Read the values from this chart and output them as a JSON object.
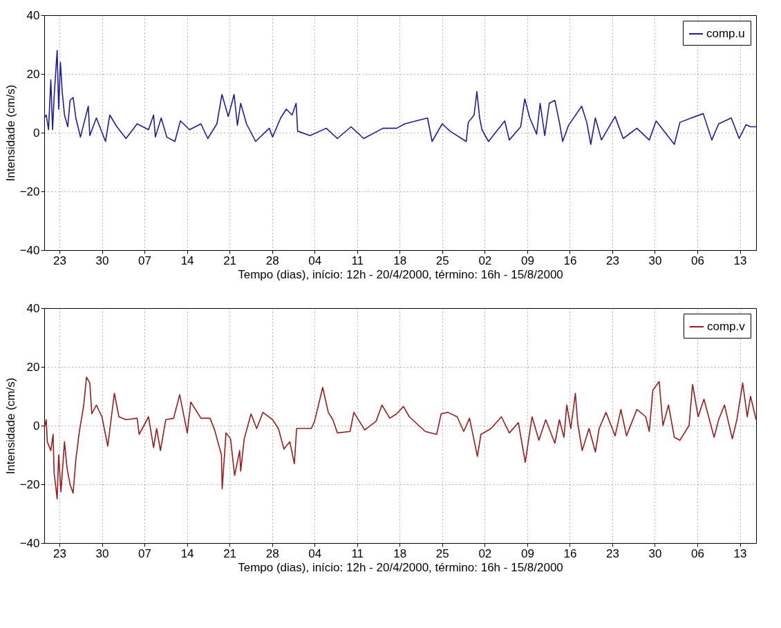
{
  "chart_data": [
    {
      "type": "line",
      "xlabel": "Tempo (dias), início: 12h - 20/4/2000, término: 16h - 15/8/2000",
      "ylabel": "Intensidade (cm/s)",
      "grid": true,
      "legend": "top right",
      "line_style": "solid",
      "xlim": [
        "2000-04-20T12:00",
        "2000-08-15T16:00"
      ],
      "ylim": [
        -40,
        40
      ],
      "yticks": [
        -40,
        -20,
        0,
        20,
        40
      ],
      "xticks": [
        {
          "value": "2000-04-23",
          "label": "23"
        },
        {
          "value": "2000-04-30",
          "label": "30"
        },
        {
          "value": "2000-05-07",
          "label": "07"
        },
        {
          "value": "2000-05-14",
          "label": "14"
        },
        {
          "value": "2000-05-21",
          "label": "21"
        },
        {
          "value": "2000-05-28",
          "label": "28"
        },
        {
          "value": "2000-06-04",
          "label": "04"
        },
        {
          "value": "2000-06-11",
          "label": "11"
        },
        {
          "value": "2000-06-18",
          "label": "18"
        },
        {
          "value": "2000-06-25",
          "label": "25"
        },
        {
          "value": "2000-07-02",
          "label": "02"
        },
        {
          "value": "2000-07-09",
          "label": "09"
        },
        {
          "value": "2000-07-16",
          "label": "16"
        },
        {
          "value": "2000-07-23",
          "label": "23"
        },
        {
          "value": "2000-07-30",
          "label": "30"
        },
        {
          "value": "2000-08-06",
          "label": "06"
        },
        {
          "value": "2000-08-13",
          "label": "13"
        }
      ],
      "x": [
        "2000-04-20T12:00",
        "2000-04-20T20:00",
        "2000-04-21T05:00",
        "2000-04-21T14:00",
        "2000-04-21T21:00",
        "2000-04-22T03:00",
        "2000-04-22T15:00",
        "2000-04-22T21:00",
        "2000-04-23T04:00",
        "2000-04-23T11:00",
        "2000-04-23T20:00",
        "2000-04-24T09:00",
        "2000-04-24T18:00",
        "2000-04-25T06:00",
        "2000-04-25T17:00",
        "2000-04-26T11:00",
        "2000-04-27T18:00",
        "2000-04-28T00:00",
        "2000-04-29T02:00",
        "2000-04-30T14:00",
        "2000-05-01T07:00",
        "2000-05-02T11:00",
        "2000-05-03T23:00",
        "2000-05-05T19:00",
        "2000-05-07T16:00",
        "2000-05-08T12:00",
        "2000-05-08T19:00",
        "2000-05-09T18:00",
        "2000-05-10T16:00",
        "2000-05-12T00:00",
        "2000-05-12T22:00",
        "2000-05-14T10:00",
        "2000-05-16T07:00",
        "2000-05-17T10:00",
        "2000-05-18T22:00",
        "2000-05-19T18:00",
        "2000-05-20T19:00",
        "2000-05-21T18:00",
        "2000-05-22T07:00",
        "2000-05-22T20:00",
        "2000-05-23T19:00",
        "2000-05-25T07:00",
        "2000-05-27T13:00",
        "2000-05-28T02:00",
        "2000-05-29T10:00",
        "2000-05-30T08:00",
        "2000-05-31T07:00",
        "2000-05-31T23:00",
        "2000-06-01T05:00",
        "2000-06-03T06:00",
        "2000-06-05T22:00",
        "2000-06-07T18:00",
        "2000-06-10T00:00",
        "2000-06-12T02:00",
        "2000-06-15T06:00",
        "2000-06-17T12:00",
        "2000-06-18T20:00",
        "2000-06-22T14:00",
        "2000-06-23T08:00",
        "2000-06-25T00:00",
        "2000-06-26T07:00",
        "2000-06-28T23:00",
        "2000-06-29T07:00",
        "2000-06-30T06:00",
        "2000-06-30T17:00",
        "2000-07-01T04:00",
        "2000-07-01T13:00",
        "2000-07-02T15:00",
        "2000-07-05T07:00",
        "2000-07-06T01:00",
        "2000-07-07T22:00",
        "2000-07-08T14:00",
        "2000-07-09T10:00",
        "2000-07-10T13:00",
        "2000-07-11T03:00",
        "2000-07-11T21:00",
        "2000-07-12T15:00",
        "2000-07-13T13:00",
        "2000-07-14T07:00",
        "2000-07-14T20:00",
        "2000-07-15T19:00",
        "2000-07-17T23:00",
        "2000-07-18T19:00",
        "2000-07-19T11:00",
        "2000-07-20T05:00",
        "2000-07-21T05:00",
        "2000-07-23T11:00",
        "2000-07-24T19:00",
        "2000-07-27T01:00",
        "2000-07-29T02:00",
        "2000-07-30T05:00",
        "2000-08-02T05:00",
        "2000-08-03T03:00",
        "2000-08-05T00:00",
        "2000-08-06T23:00",
        "2000-08-08T09:00",
        "2000-08-09T12:00",
        "2000-08-11T14:00",
        "2000-08-12T21:00",
        "2000-08-14T00:00",
        "2000-08-14T18:00",
        "2000-08-15T16:00"
      ],
      "series": [
        {
          "name": "comp.u",
          "color": "#1c1c9c",
          "values": [
            5,
            6,
            1,
            18,
            1,
            12,
            28,
            8,
            24,
            14,
            6,
            2,
            11,
            12,
            5,
            -1.5,
            9,
            -1,
            5,
            -3,
            6,
            2,
            -2,
            3,
            1,
            6,
            -1.5,
            5,
            -1.5,
            -3,
            4,
            1,
            3,
            -2,
            3,
            13,
            5.5,
            13,
            2.5,
            10,
            3,
            -3,
            1.5,
            -1.5,
            5,
            8,
            6,
            10,
            0.5,
            -1,
            1.5,
            -2,
            2,
            -2,
            1.5,
            1.5,
            3,
            5,
            -3,
            3,
            0.5,
            -3,
            3.5,
            6,
            14,
            5,
            1,
            -3,
            4,
            -2.5,
            2,
            11.5,
            5,
            -0.5,
            10,
            -1,
            10,
            11,
            3.5,
            -3,
            2.5,
            9,
            3.5,
            -4,
            5,
            -2.5,
            5.5,
            -2,
            1.5,
            -2.5,
            4,
            -4,
            3.5,
            5,
            6.5,
            -2.5,
            3,
            5,
            -2,
            2.7,
            2,
            2
          ]
        }
      ]
    },
    {
      "type": "line",
      "xlabel": "Tempo (dias), início: 12h - 20/4/2000, término: 16h - 15/8/2000",
      "ylabel": "Intensidade (cm/s)",
      "grid": true,
      "legend": "top right",
      "line_style": "solid",
      "xlim": [
        "2000-04-20T12:00",
        "2000-08-15T16:00"
      ],
      "ylim": [
        -40,
        40
      ],
      "yticks": [
        -40,
        -20,
        0,
        20,
        40
      ],
      "xticks": [
        {
          "value": "2000-04-23",
          "label": "23"
        },
        {
          "value": "2000-04-30",
          "label": "30"
        },
        {
          "value": "2000-05-07",
          "label": "07"
        },
        {
          "value": "2000-05-14",
          "label": "14"
        },
        {
          "value": "2000-05-21",
          "label": "21"
        },
        {
          "value": "2000-05-28",
          "label": "28"
        },
        {
          "value": "2000-06-04",
          "label": "04"
        },
        {
          "value": "2000-06-11",
          "label": "11"
        },
        {
          "value": "2000-06-18",
          "label": "18"
        },
        {
          "value": "2000-06-25",
          "label": "25"
        },
        {
          "value": "2000-07-02",
          "label": "02"
        },
        {
          "value": "2000-07-09",
          "label": "09"
        },
        {
          "value": "2000-07-16",
          "label": "16"
        },
        {
          "value": "2000-07-23",
          "label": "23"
        },
        {
          "value": "2000-07-30",
          "label": "30"
        },
        {
          "value": "2000-08-06",
          "label": "06"
        },
        {
          "value": "2000-08-13",
          "label": "13"
        }
      ],
      "x": [
        "2000-04-20T12:00",
        "2000-04-20T20:00",
        "2000-04-21T00:00",
        "2000-04-21T14:00",
        "2000-04-21T23:00",
        "2000-04-22T03:00",
        "2000-04-22T15:00",
        "2000-04-22T21:00",
        "2000-04-23T06:00",
        "2000-04-23T20:00",
        "2000-04-24T06:00",
        "2000-04-24T18:00",
        "2000-04-25T06:00",
        "2000-04-25T17:00",
        "2000-04-26T06:00",
        "2000-04-27T00:00",
        "2000-04-27T11:00",
        "2000-04-28T00:00",
        "2000-04-28T08:00",
        "2000-04-29T02:00",
        "2000-04-30T00:00",
        "2000-04-30T23:00",
        "2000-05-02T01:00",
        "2000-05-02T19:00",
        "2000-05-03T23:00",
        "2000-05-05T19:00",
        "2000-05-06T03:00",
        "2000-05-07T16:00",
        "2000-05-08T12:00",
        "2000-05-09T00:00",
        "2000-05-09T15:00",
        "2000-05-10T12:00",
        "2000-05-11T19:00",
        "2000-05-12T19:00",
        "2000-05-14T01:00",
        "2000-05-14T15:00",
        "2000-05-16T07:00",
        "2000-05-17T19:00",
        "2000-05-18T13:00",
        "2000-05-19T16:00",
        "2000-05-19T19:00",
        "2000-05-20T10:00",
        "2000-05-21T04:00",
        "2000-05-21T20:00",
        "2000-05-22T16:00",
        "2000-05-22T20:00",
        "2000-05-23T10:00",
        "2000-05-24T13:00",
        "2000-05-25T11:00",
        "2000-05-26T12:00",
        "2000-05-28T02:00",
        "2000-05-29T01:00",
        "2000-05-29T23:00",
        "2000-05-30T22:00",
        "2000-05-31T16:00",
        "2000-06-01T01:00",
        "2000-06-03T11:00",
        "2000-06-04T00:00",
        "2000-06-05T08:00",
        "2000-06-06T06:00",
        "2000-06-07T00:00",
        "2000-06-07T18:00",
        "2000-06-09T20:00",
        "2000-06-10T11:00",
        "2000-06-12T06:00",
        "2000-06-14T03:00",
        "2000-06-15T02:00",
        "2000-06-16T09:00",
        "2000-06-17T12:00",
        "2000-06-18T15:00",
        "2000-06-19T14:00",
        "2000-06-22T05:00",
        "2000-06-24T02:00",
        "2000-06-24T20:00",
        "2000-06-25T23:00",
        "2000-06-27T11:00",
        "2000-06-28T13:00",
        "2000-06-29T12:00",
        "2000-06-30T19:00",
        "2000-07-01T09:00",
        "2000-07-03T01:00",
        "2000-07-04T18:00",
        "2000-07-06T01:00",
        "2000-07-07T13:00",
        "2000-07-08T16:00",
        "2000-07-09T19:00",
        "2000-07-10T22:00",
        "2000-07-12T01:00",
        "2000-07-13T13:00",
        "2000-07-14T07:00",
        "2000-07-15T01:00",
        "2000-07-15T12:00",
        "2000-07-16T04:00",
        "2000-07-16T22:00",
        "2000-07-17T07:00",
        "2000-07-18T01:00",
        "2000-07-19T04:00",
        "2000-07-20T05:00",
        "2000-07-20T20:00",
        "2000-07-21T23:00",
        "2000-07-23T11:00",
        "2000-07-24T10:00",
        "2000-07-25T08:00",
        "2000-07-27T01:00",
        "2000-07-28T12:00",
        "2000-07-29T02:00",
        "2000-07-29T16:00",
        "2000-07-30T17:00",
        "2000-07-31T08:00",
        "2000-08-01T06:00",
        "2000-08-02T05:00",
        "2000-08-03T03:00",
        "2000-08-04T15:00",
        "2000-08-05T05:00",
        "2000-08-06T03:00",
        "2000-08-07T02:00",
        "2000-08-08T18:00",
        "2000-08-09T12:00",
        "2000-08-10T11:00",
        "2000-08-11T18:00",
        "2000-08-12T12:00",
        "2000-08-13T11:00",
        "2000-08-14T05:00",
        "2000-08-14T18:00",
        "2000-08-15T16:00"
      ],
      "series": [
        {
          "name": "comp.v",
          "color": "#9c1a1a",
          "values": [
            -1,
            2,
            -5.5,
            -8.5,
            -3,
            -16,
            -25,
            -10,
            -22.5,
            -5.5,
            -14.5,
            -20,
            -23,
            -11.5,
            -2.5,
            7,
            16.5,
            14.5,
            4,
            7,
            3,
            -7,
            11,
            3,
            2,
            2.5,
            -3,
            3,
            -7.5,
            -1,
            -8.5,
            2,
            2.5,
            10.5,
            -2.5,
            8,
            2.5,
            2.5,
            -1.5,
            -10,
            -21.5,
            -2.5,
            -4.5,
            -17,
            -8.5,
            -15.5,
            -4.5,
            4,
            -1,
            4.5,
            2,
            -1,
            -8,
            -5.5,
            -13,
            -1,
            -1,
            1.5,
            13,
            4.5,
            2,
            -2.5,
            -2,
            4.5,
            -1.5,
            1.5,
            7,
            2.5,
            4,
            6.5,
            3,
            -2,
            -3,
            4,
            4.5,
            3,
            -2,
            2.5,
            -10.5,
            -3,
            -1,
            3,
            -2.5,
            1,
            -12.5,
            3,
            -5,
            2,
            -6,
            2,
            -4,
            7,
            -1,
            11,
            1,
            -8.5,
            -1,
            -9,
            -1,
            4.5,
            -3.5,
            5.5,
            -3.5,
            5.5,
            3,
            -2,
            12,
            15,
            0,
            7,
            -4,
            -5,
            0,
            14,
            3,
            9,
            -4,
            2,
            7,
            -4.5,
            2,
            14.5,
            3,
            10,
            2
          ]
        }
      ]
    }
  ]
}
